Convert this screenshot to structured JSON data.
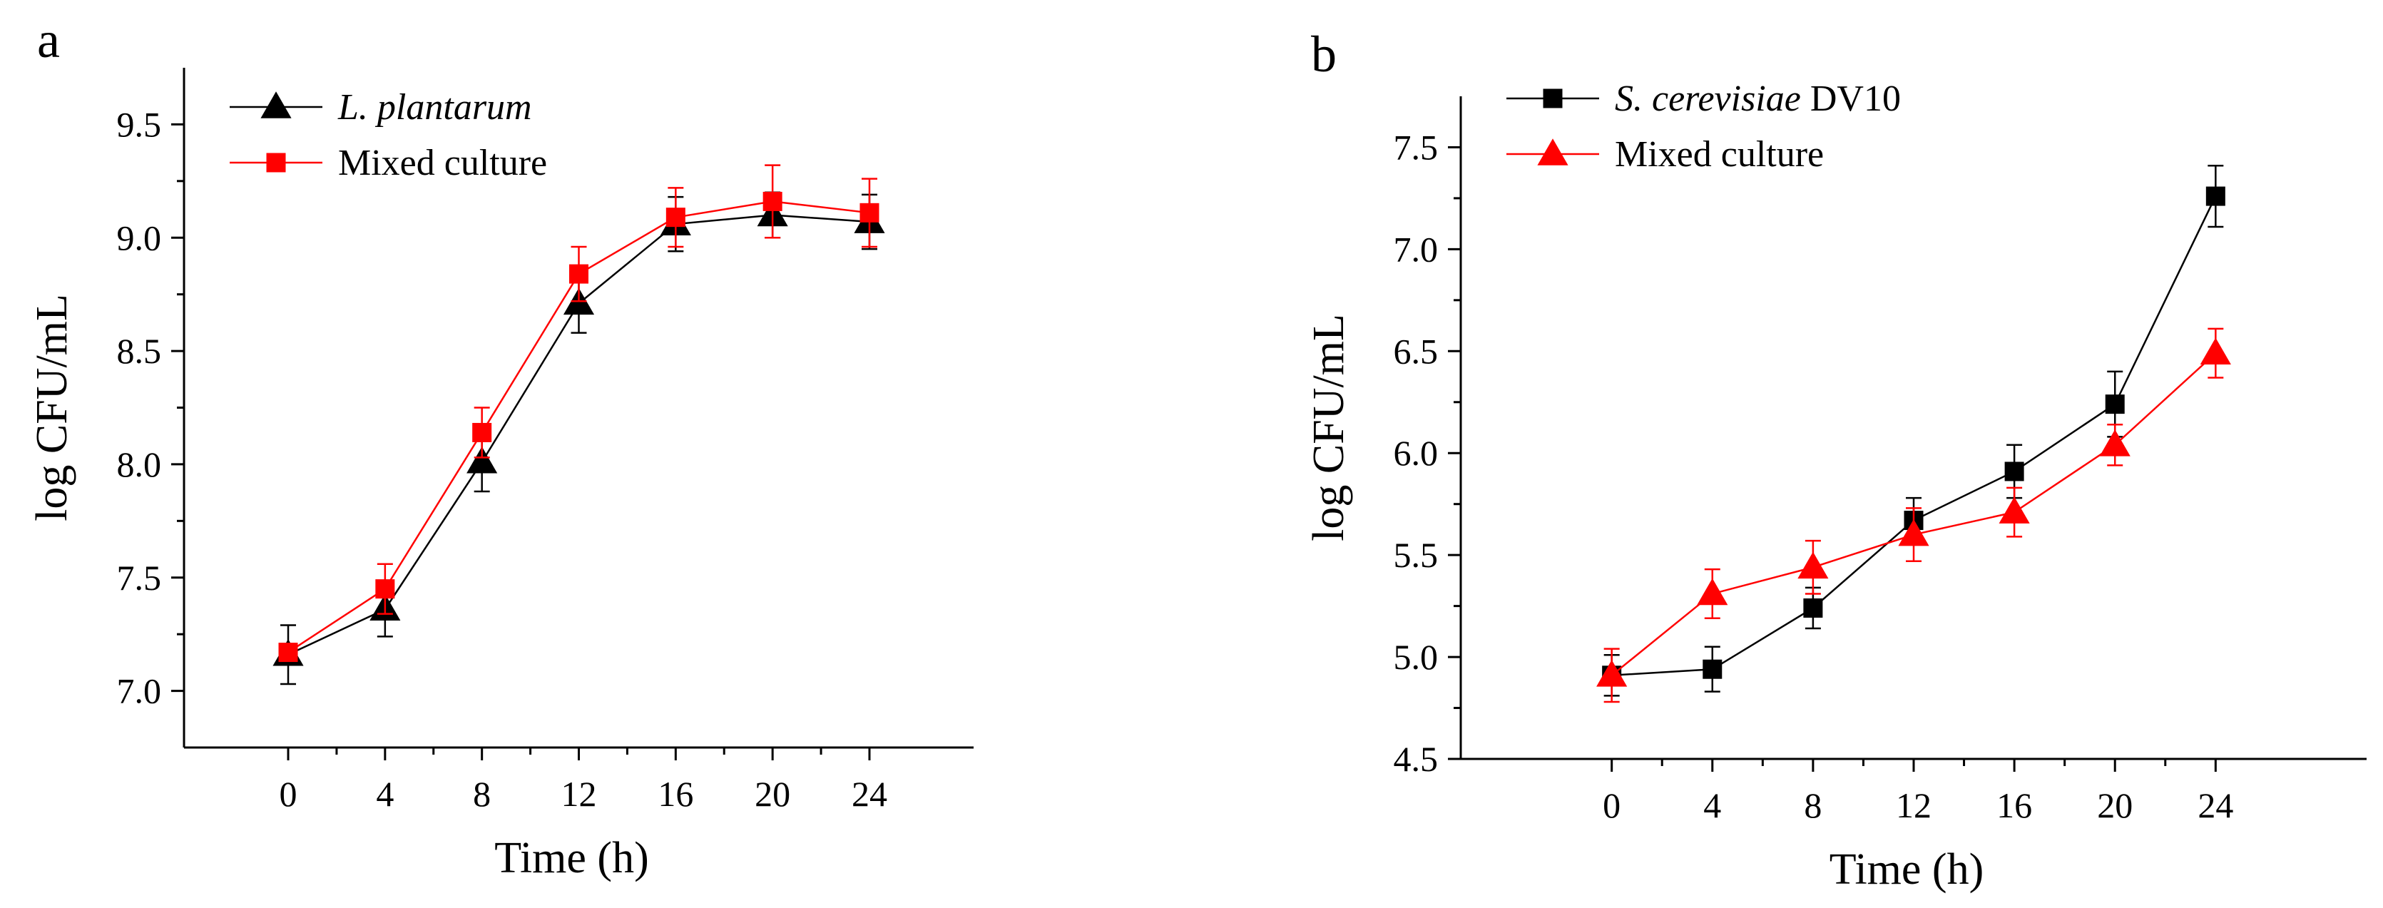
{
  "figure": {
    "panels": [
      "a",
      "b"
    ]
  },
  "chart_data": [
    {
      "panel_label": "a",
      "type": "line",
      "title": "",
      "xlabel": "Time (h)",
      "ylabel": "log CFU/mL",
      "x": [
        0,
        4,
        8,
        12,
        16,
        20,
        24
      ],
      "xticks": [
        "0",
        "4",
        "8",
        "12",
        "16",
        "20",
        "24"
      ],
      "xlim": [
        -4.3,
        28.3
      ],
      "ylim": [
        6.75,
        9.75
      ],
      "yticks": [
        "7.0",
        "7.5",
        "8.0",
        "8.5",
        "9.0",
        "9.5"
      ],
      "ytick_values": [
        7.0,
        7.5,
        8.0,
        8.5,
        9.0,
        9.5
      ],
      "legend_position": "top-left",
      "series": [
        {
          "name_italic": "L. plantarum",
          "name_regular": "",
          "color": "#000000",
          "marker": "triangle",
          "values": [
            7.16,
            7.36,
            8.01,
            8.71,
            9.06,
            9.1,
            9.07
          ],
          "errors": [
            0.13,
            0.12,
            0.13,
            0.13,
            0.12,
            0.1,
            0.12
          ]
        },
        {
          "name_italic": "",
          "name_regular": "Mixed culture",
          "color": "#ff0000",
          "marker": "square",
          "values": [
            7.17,
            7.45,
            8.14,
            8.84,
            9.09,
            9.16,
            9.11
          ],
          "errors": [
            0.02,
            0.11,
            0.11,
            0.12,
            0.13,
            0.16,
            0.15
          ]
        }
      ]
    },
    {
      "panel_label": "b",
      "type": "line",
      "title": "",
      "xlabel": "Time (h)",
      "ylabel": "log CFU/mL",
      "x": [
        0,
        4,
        8,
        12,
        16,
        20,
        24
      ],
      "xticks": [
        "0",
        "4",
        "8",
        "12",
        "16",
        "20",
        "24"
      ],
      "xlim": [
        -6,
        30
      ],
      "ylim": [
        4.5,
        7.75
      ],
      "yticks": [
        "4.5",
        "5.0",
        "5.5",
        "6.0",
        "6.5",
        "7.0",
        "7.5"
      ],
      "ytick_values": [
        4.5,
        5.0,
        5.5,
        6.0,
        6.5,
        7.0,
        7.5
      ],
      "legend_position": "top-left",
      "series": [
        {
          "name_italic": "S. cerevisiae",
          "name_regular": " DV10",
          "color": "#000000",
          "marker": "square",
          "values": [
            4.91,
            4.94,
            5.24,
            5.67,
            5.91,
            6.24,
            7.26
          ],
          "errors": [
            0.1,
            0.11,
            0.1,
            0.11,
            0.13,
            0.16,
            0.15
          ]
        },
        {
          "name_italic": "",
          "name_regular": "Mixed culture",
          "color": "#ff0000",
          "marker": "triangle",
          "values": [
            4.91,
            5.31,
            5.44,
            5.6,
            5.71,
            6.04,
            6.49
          ],
          "errors": [
            0.13,
            0.12,
            0.13,
            0.13,
            0.12,
            0.1,
            0.12
          ]
        }
      ]
    }
  ]
}
